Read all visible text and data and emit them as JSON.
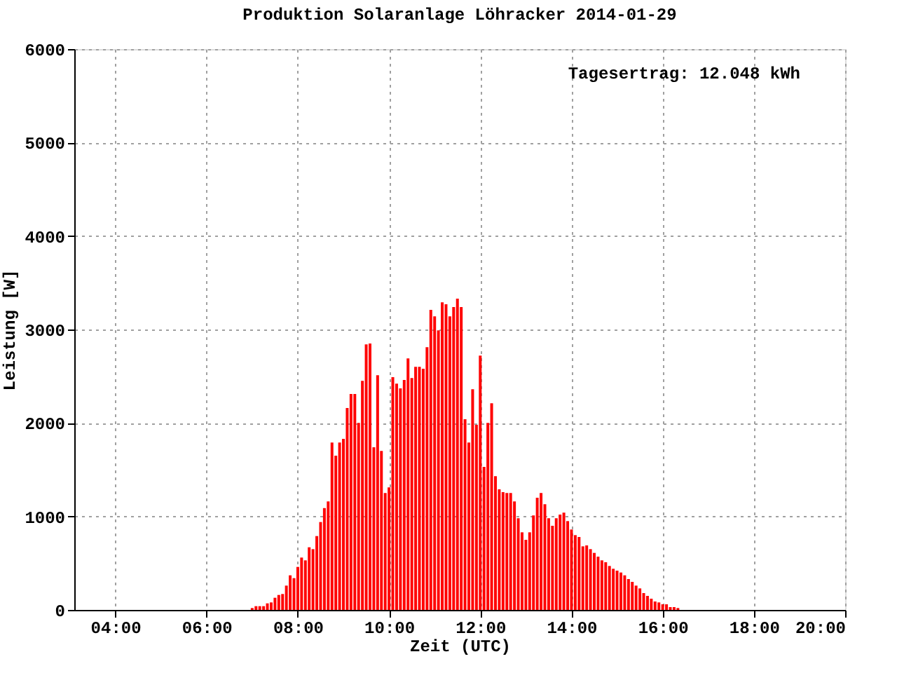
{
  "chart_data": {
    "type": "bar",
    "title": "Produktion Solaranlage Löhracker 2014-01-29",
    "xlabel": "Zeit (UTC)",
    "ylabel": "Leistung [W]",
    "annotations": [
      "Tagesertrag: 12.048 kWh"
    ],
    "color": "#ff0000",
    "grid": true,
    "xlim": [
      3.1,
      20
    ],
    "xticks": [
      {
        "value": 4,
        "label": "04:00"
      },
      {
        "value": 6,
        "label": "06:00"
      },
      {
        "value": 8,
        "label": "08:00"
      },
      {
        "value": 10,
        "label": "10:00"
      },
      {
        "value": 12,
        "label": "12:00"
      },
      {
        "value": 14,
        "label": "14:00"
      },
      {
        "value": 16,
        "label": "16:00"
      },
      {
        "value": 18,
        "label": "18:00"
      },
      {
        "value": 20,
        "label": "20:00"
      }
    ],
    "ylim": [
      0,
      6000
    ],
    "yticks": [
      0,
      1000,
      2000,
      3000,
      4000,
      5000,
      6000
    ],
    "x": [
      7,
      7.0833,
      7.1667,
      7.25,
      7.3333,
      7.4167,
      7.5,
      7.5833,
      7.6667,
      7.75,
      7.8333,
      7.9167,
      8,
      8.0833,
      8.1667,
      8.25,
      8.3333,
      8.4167,
      8.5,
      8.5833,
      8.6667,
      8.75,
      8.8333,
      8.9167,
      9,
      9.0833,
      9.1667,
      9.25,
      9.3333,
      9.4167,
      9.5,
      9.5833,
      9.6667,
      9.75,
      9.8333,
      9.9167,
      10,
      10.0833,
      10.1667,
      10.25,
      10.3333,
      10.4167,
      10.5,
      10.5833,
      10.6667,
      10.75,
      10.8333,
      10.9167,
      11,
      11.0833,
      11.1667,
      11.25,
      11.3333,
      11.4167,
      11.5,
      11.5833,
      11.6667,
      11.75,
      11.8333,
      11.9167,
      12,
      12.0833,
      12.1667,
      12.25,
      12.3333,
      12.4167,
      12.5,
      12.5833,
      12.6667,
      12.75,
      12.8333,
      12.9167,
      13,
      13.0833,
      13.1667,
      13.25,
      13.3333,
      13.4167,
      13.5,
      13.5833,
      13.6667,
      13.75,
      13.8333,
      13.9167,
      14,
      14.0833,
      14.1667,
      14.25,
      14.3333,
      14.4167,
      14.5,
      14.5833,
      14.6667,
      14.75,
      14.8333,
      14.9167,
      15,
      15.0833,
      15.1667,
      15.25,
      15.3333,
      15.4167,
      15.5,
      15.5833,
      15.6667,
      15.75,
      15.8333,
      15.9167,
      16,
      16.0833,
      16.1667,
      16.25,
      16.3333
    ],
    "values": [
      20,
      40,
      40,
      40,
      70,
      80,
      130,
      160,
      170,
      260,
      370,
      340,
      460,
      560,
      530,
      670,
      650,
      790,
      940,
      1090,
      1160,
      1790,
      1650,
      1790,
      1830,
      2160,
      2310,
      2310,
      2000,
      2450,
      2840,
      2850,
      1740,
      2510,
      1700,
      1250,
      1310,
      2490,
      2420,
      2370,
      2460,
      2690,
      2480,
      2600,
      2600,
      2580,
      2810,
      3210,
      3140,
      2990,
      3290,
      3270,
      3140,
      3240,
      3330,
      3240,
      2040,
      1790,
      2360,
      1980,
      2720,
      1530,
      2000,
      2210,
      1430,
      1290,
      1260,
      1250,
      1250,
      1160,
      980,
      830,
      750,
      830,
      1010,
      1200,
      1250,
      1130,
      980,
      900,
      980,
      1020,
      1040,
      950,
      860,
      800,
      780,
      680,
      690,
      650,
      610,
      570,
      530,
      510,
      470,
      440,
      420,
      400,
      370,
      330,
      300,
      260,
      230,
      180,
      150,
      120,
      90,
      80,
      60,
      60,
      30,
      30,
      20
    ]
  }
}
